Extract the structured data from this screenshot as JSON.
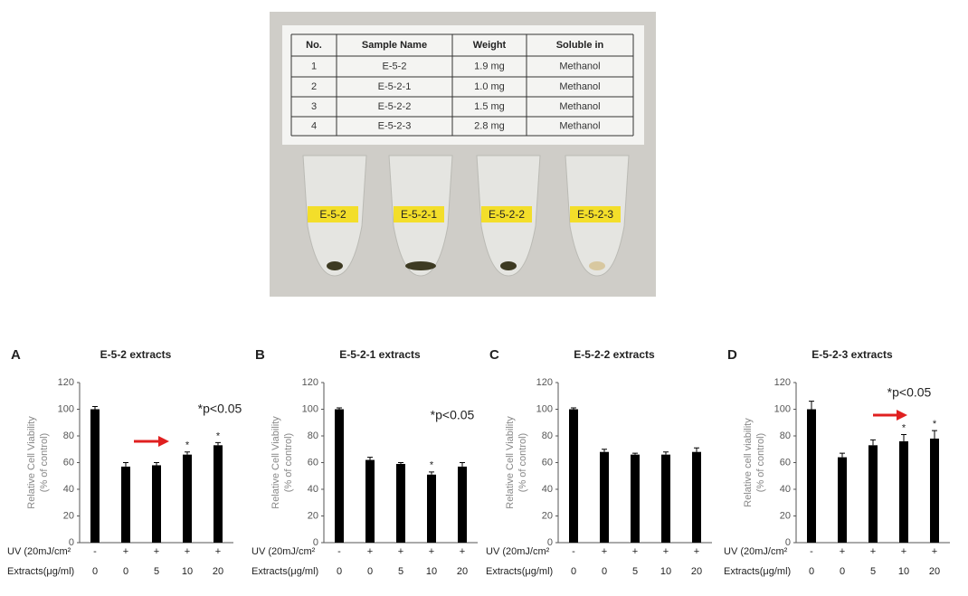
{
  "photo": {
    "table": {
      "header": [
        "No.",
        "Sample Name",
        "Weight",
        "Soluble in"
      ],
      "rows": [
        [
          "1",
          "E-5-2",
          "1.9 mg",
          "Methanol"
        ],
        [
          "2",
          "E-5-2-1",
          "1.0 mg",
          "Methanol"
        ],
        [
          "3",
          "E-5-2-2",
          "1.5 mg",
          "Methanol"
        ],
        [
          "4",
          "E-5-2-3",
          "2.8 mg",
          "Methanol"
        ]
      ]
    },
    "tube_labels": [
      "E-5-2",
      "E-5-2-1",
      "E-5-2-2",
      "E-5-2-3"
    ]
  },
  "chart_data": [
    {
      "type": "bar",
      "panel": "A",
      "title": "E-5-2 extracts",
      "ylabel": [
        "Relative Cell Viability",
        "(% of control)"
      ],
      "uv_label": "UV (20mJ/cm²",
      "uv": [
        "-",
        "+",
        "+",
        "+",
        "+"
      ],
      "extract_label": "Extracts(μg/ml)",
      "categories": [
        "0",
        "0",
        "5",
        "10",
        "20"
      ],
      "values": [
        100,
        57,
        58,
        66,
        73
      ],
      "errors": [
        2,
        3,
        2,
        2,
        2
      ],
      "significance": [
        null,
        null,
        null,
        "*",
        "*"
      ],
      "note": "*p<0.05",
      "arrow": true,
      "color": "#000000",
      "ylim": [
        0,
        120
      ],
      "yticks": [
        0,
        20,
        40,
        60,
        80,
        100,
        120
      ]
    },
    {
      "type": "bar",
      "panel": "B",
      "title": "E-5-2-1 extracts",
      "ylabel": [
        "Relative Cell Viability",
        "(% of control)"
      ],
      "uv_label": "UV (20mJ/cm²",
      "uv": [
        "-",
        "+",
        "+",
        "+",
        "+"
      ],
      "extract_label": "Extracts(μg/ml)",
      "categories": [
        "0",
        "0",
        "5",
        "10",
        "20"
      ],
      "values": [
        100,
        62,
        59,
        51,
        57
      ],
      "errors": [
        1,
        2,
        1,
        2,
        3
      ],
      "significance": [
        null,
        null,
        null,
        "*",
        null
      ],
      "note": "*p<0.05",
      "arrow": false,
      "color": "#000000",
      "ylim": [
        0,
        120
      ],
      "yticks": [
        0,
        20,
        40,
        60,
        80,
        100,
        120
      ]
    },
    {
      "type": "bar",
      "panel": "C",
      "title": "E-5-2-2 extracts",
      "ylabel": [
        "Relative Cell Viability",
        "(% of control)"
      ],
      "uv_label": "UV (20mJ/cm²",
      "uv": [
        "-",
        "+",
        "+",
        "+",
        "+"
      ],
      "extract_label": "Extracts(μg/ml)",
      "categories": [
        "0",
        "0",
        "5",
        "10",
        "20"
      ],
      "values": [
        100,
        68,
        66,
        66,
        68
      ],
      "errors": [
        1,
        2,
        1,
        2,
        3
      ],
      "arrow": false,
      "color": "#000000",
      "ylim": [
        0,
        120
      ],
      "yticks": [
        0,
        20,
        40,
        60,
        80,
        100,
        120
      ]
    },
    {
      "type": "bar",
      "panel": "D",
      "title": "E-5-2-3 extracts",
      "ylabel": [
        "Relative cell viability",
        "(% of control)"
      ],
      "uv_label": "UV (20mJ/cm²",
      "uv": [
        "-",
        "+",
        "+",
        "+",
        "+"
      ],
      "extract_label": "Extracts(μg/ml)",
      "categories": [
        "0",
        "0",
        "5",
        "10",
        "20"
      ],
      "values": [
        100,
        64,
        73,
        76,
        78
      ],
      "errors": [
        6,
        3,
        4,
        5,
        6
      ],
      "significance": [
        null,
        null,
        null,
        "*",
        "*"
      ],
      "note": "*p<0.05",
      "arrow": true,
      "color": "#000000",
      "ylim": [
        0,
        120
      ],
      "yticks": [
        0,
        20,
        40,
        60,
        80,
        100,
        120
      ]
    }
  ]
}
